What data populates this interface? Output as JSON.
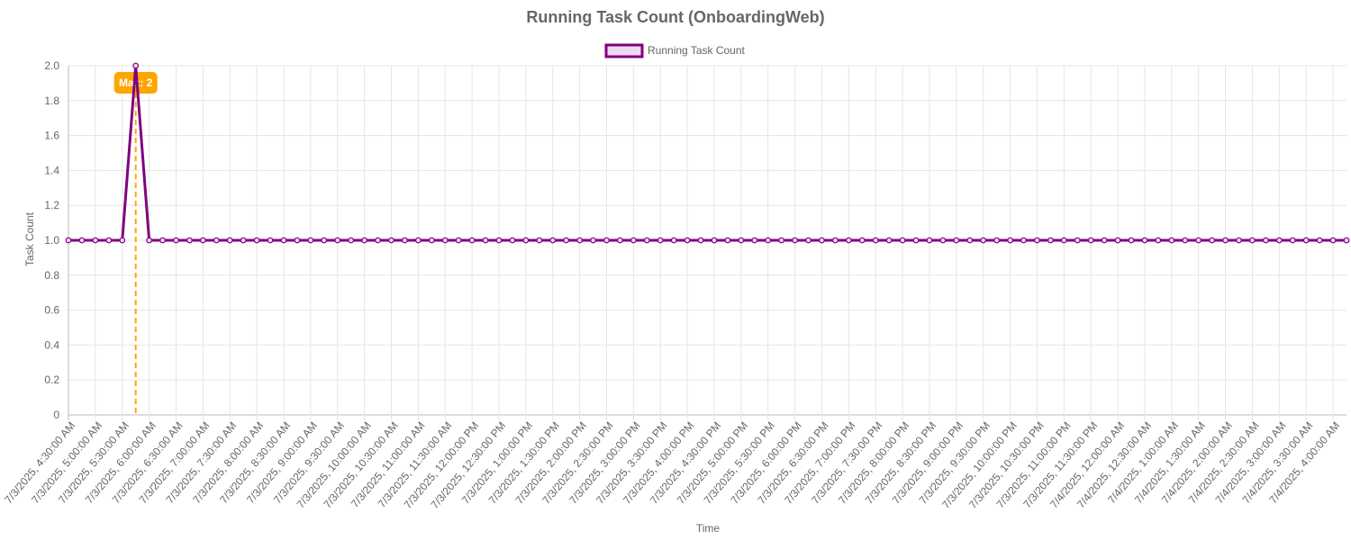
{
  "chart_data": {
    "type": "line",
    "title": "Running Task Count (OnboardingWeb)",
    "xlabel": "Time",
    "ylabel": "Task Count",
    "ylim": [
      0,
      2
    ],
    "y_ticks": [
      "0",
      "0.2",
      "0.4",
      "0.6",
      "0.8",
      "1.0",
      "1.2",
      "1.4",
      "1.6",
      "1.8",
      "2.0"
    ],
    "grid": true,
    "legend_position": "top-center",
    "x_tick_labels": [
      "7/3/2025, 4:30:00 AM",
      "7/3/2025, 5:00:00 AM",
      "7/3/2025, 5:30:00 AM",
      "7/3/2025, 6:00:00 AM",
      "7/3/2025, 6:30:00 AM",
      "7/3/2025, 7:00:00 AM",
      "7/3/2025, 7:30:00 AM",
      "7/3/2025, 8:00:00 AM",
      "7/3/2025, 8:30:00 AM",
      "7/3/2025, 9:00:00 AM",
      "7/3/2025, 9:30:00 AM",
      "7/3/2025, 10:00:00 AM",
      "7/3/2025, 10:30:00 AM",
      "7/3/2025, 11:00:00 AM",
      "7/3/2025, 11:30:00 AM",
      "7/3/2025, 12:00:00 PM",
      "7/3/2025, 12:30:00 PM",
      "7/3/2025, 1:00:00 PM",
      "7/3/2025, 1:30:00 PM",
      "7/3/2025, 2:00:00 PM",
      "7/3/2025, 2:30:00 PM",
      "7/3/2025, 3:00:00 PM",
      "7/3/2025, 3:30:00 PM",
      "7/3/2025, 4:00:00 PM",
      "7/3/2025, 4:30:00 PM",
      "7/3/2025, 5:00:00 PM",
      "7/3/2025, 5:30:00 PM",
      "7/3/2025, 6:00:00 PM",
      "7/3/2025, 6:30:00 PM",
      "7/3/2025, 7:00:00 PM",
      "7/3/2025, 7:30:00 PM",
      "7/3/2025, 8:00:00 PM",
      "7/3/2025, 8:30:00 PM",
      "7/3/2025, 9:00:00 PM",
      "7/3/2025, 9:30:00 PM",
      "7/3/2025, 10:00:00 PM",
      "7/3/2025, 10:30:00 PM",
      "7/3/2025, 11:00:00 PM",
      "7/3/2025, 11:30:00 PM",
      "7/4/2025, 12:00:00 AM",
      "7/4/2025, 12:30:00 AM",
      "7/4/2025, 1:00:00 AM",
      "7/4/2025, 1:30:00 AM",
      "7/4/2025, 2:00:00 AM",
      "7/4/2025, 2:30:00 AM",
      "7/4/2025, 3:00:00 AM",
      "7/4/2025, 3:30:00 AM",
      "7/4/2025, 4:00:00 AM"
    ],
    "series": [
      {
        "name": "Running Task Count",
        "color": "#800080",
        "fill_color": "#f0d8f0",
        "values": [
          1,
          1,
          1,
          1,
          1,
          2,
          1,
          1,
          1,
          1,
          1,
          1,
          1,
          1,
          1,
          1,
          1,
          1,
          1,
          1,
          1,
          1,
          1,
          1,
          1,
          1,
          1,
          1,
          1,
          1,
          1,
          1,
          1,
          1,
          1,
          1,
          1,
          1,
          1,
          1,
          1,
          1,
          1,
          1,
          1,
          1,
          1,
          1,
          1,
          1,
          1,
          1,
          1,
          1,
          1,
          1,
          1,
          1,
          1,
          1,
          1,
          1,
          1,
          1,
          1,
          1,
          1,
          1,
          1,
          1,
          1,
          1,
          1,
          1,
          1,
          1,
          1,
          1,
          1,
          1,
          1,
          1,
          1,
          1,
          1,
          1,
          1,
          1,
          1,
          1,
          1,
          1,
          1,
          1,
          1,
          1
        ]
      }
    ],
    "annotation": {
      "label": "Max: 2",
      "value": 2,
      "color": "#ffa500"
    }
  }
}
